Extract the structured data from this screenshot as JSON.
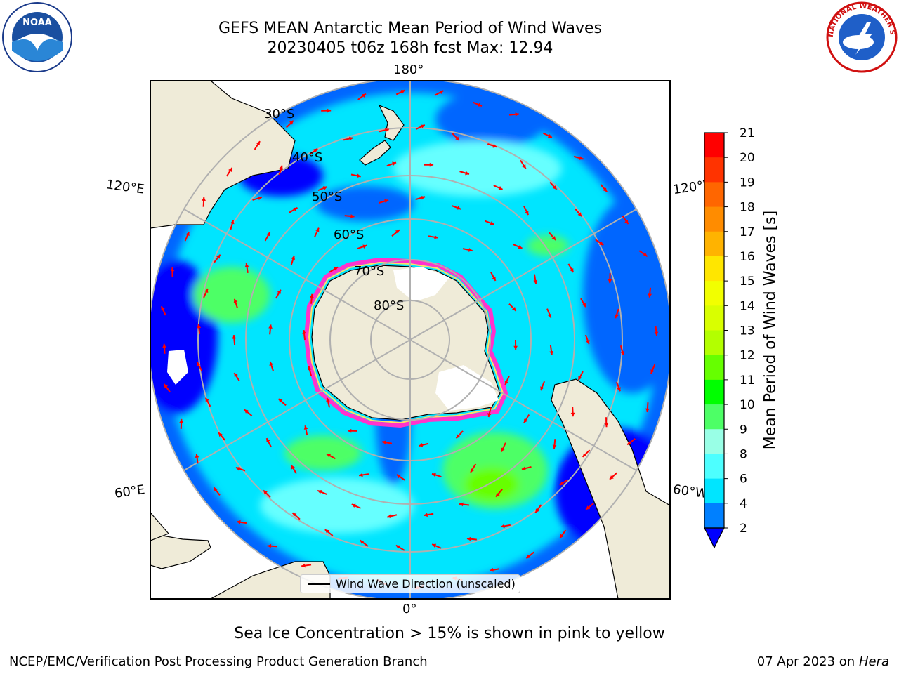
{
  "title": {
    "line1": "GEFS MEAN Antarctic Mean Period of Wind Waves",
    "line2": "20230405 t06z 168h fcst   Max: 12.94"
  },
  "map": {
    "lon_labels": [
      "180°",
      "120°E",
      "120°W",
      "60°E",
      "60°W",
      "0°"
    ],
    "lat_labels": [
      "30°S",
      "40°S",
      "50°S",
      "60°S",
      "70°S",
      "80°S"
    ],
    "legend_label": "Wind Wave Direction (unscaled)",
    "colors": {
      "ocean_dark": "#0000ff",
      "ocean_mid": "#0066ff",
      "ocean_light": "#00e5ff",
      "ocean_pale": "#66ffff",
      "land": "#efebd8",
      "ice_edge": "#ff33cc",
      "ice_inner": "#ffe066",
      "arrow": "#ff0000"
    }
  },
  "colorbar": {
    "label": "Mean Period of Wind Waves [s]",
    "ticks": [
      "21",
      "20",
      "19",
      "18",
      "17",
      "16",
      "15",
      "14",
      "13",
      "12",
      "11",
      "10",
      "9",
      "8",
      "6",
      "4",
      "2"
    ],
    "colors": [
      "#ff0000",
      "#ff3300",
      "#ff6600",
      "#ff8c00",
      "#ffb300",
      "#ffe600",
      "#f2ff00",
      "#d9ff00",
      "#b3ff00",
      "#66ff00",
      "#00ff00",
      "#4dff66",
      "#99ffe6",
      "#4dffff",
      "#00e5ff",
      "#0080ff",
      "#0000ff"
    ]
  },
  "caption": "Sea Ice Concentration > 15% is shown in pink to yellow",
  "footer": {
    "left": "NCEP/EMC/Verification Post Processing Product Generation Branch",
    "right_date": "07 Apr 2023 on ",
    "right_system": "Hera"
  },
  "logos": {
    "left_text": "NOAA",
    "right_text": "NATIONAL WEATHER SERVICE"
  }
}
